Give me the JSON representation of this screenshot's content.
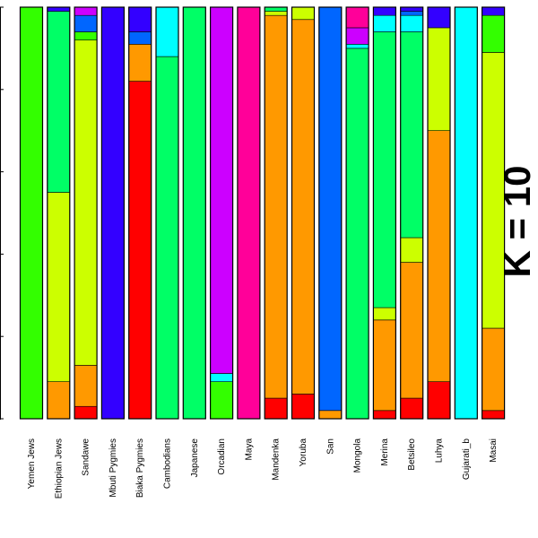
{
  "chart_data": {
    "type": "bar",
    "stacked": true,
    "orientation": "vertical",
    "ylim": [
      0,
      1
    ],
    "k_label": "K = 10",
    "categories": [
      "Yemen Jews",
      "Ethiopian Jews",
      "Sandawe",
      "Mbuti Pygmies",
      "Biaka Pygmies",
      "Cambodians",
      "Japanese",
      "Orcadian",
      "Maya",
      "Mandenka",
      "Yoruba",
      "San",
      "Mongola",
      "Merina",
      "Betsileo",
      "Luhya",
      "Gujarati_b",
      "Masai"
    ],
    "colors": {
      "red": "#ff0000",
      "orange": "#ff9900",
      "yellowgreen": "#ccff00",
      "green": "#33ff00",
      "springgreen": "#00ff66",
      "cyan": "#00ffff",
      "blue": "#0066ff",
      "indigo": "#3300ff",
      "violet": "#cc00ff",
      "magenta": "#ff0099"
    },
    "bars": [
      {
        "category": "Yemen Jews",
        "segments": [
          [
            "green",
            1.0
          ]
        ]
      },
      {
        "category": "Ethiopian Jews",
        "segments": [
          [
            "orange",
            0.09
          ],
          [
            "yellowgreen",
            0.46
          ],
          [
            "springgreen",
            0.44
          ],
          [
            "indigo",
            0.01
          ]
        ]
      },
      {
        "category": "Sandawe",
        "segments": [
          [
            "red",
            0.03
          ],
          [
            "orange",
            0.1
          ],
          [
            "yellowgreen",
            0.79
          ],
          [
            "green",
            0.02
          ],
          [
            "blue",
            0.04
          ],
          [
            "violet",
            0.02
          ]
        ]
      },
      {
        "category": "Mbuti Pygmies",
        "segments": [
          [
            "indigo",
            1.0
          ]
        ]
      },
      {
        "category": "Biaka Pygmies",
        "segments": [
          [
            "red",
            0.82
          ],
          [
            "orange",
            0.09
          ],
          [
            "blue",
            0.03
          ],
          [
            "indigo",
            0.06
          ]
        ]
      },
      {
        "category": "Cambodians",
        "segments": [
          [
            "springgreen",
            0.88
          ],
          [
            "cyan",
            0.12
          ]
        ]
      },
      {
        "category": "Japanese",
        "segments": [
          [
            "springgreen",
            1.0
          ]
        ]
      },
      {
        "category": "Orcadian",
        "segments": [
          [
            "green",
            0.09
          ],
          [
            "cyan",
            0.02
          ],
          [
            "violet",
            0.89
          ]
        ]
      },
      {
        "category": "Maya",
        "segments": [
          [
            "magenta",
            1.0
          ]
        ]
      },
      {
        "category": "Mandenka",
        "segments": [
          [
            "red",
            0.05
          ],
          [
            "orange",
            0.93
          ],
          [
            "yellowgreen",
            0.01
          ],
          [
            "springgreen",
            0.01
          ]
        ]
      },
      {
        "category": "Yoruba",
        "segments": [
          [
            "red",
            0.06
          ],
          [
            "orange",
            0.91
          ],
          [
            "yellowgreen",
            0.03
          ]
        ]
      },
      {
        "category": "San",
        "segments": [
          [
            "orange",
            0.02
          ],
          [
            "blue",
            0.98
          ]
        ]
      },
      {
        "category": "Mongola",
        "segments": [
          [
            "springgreen",
            0.9
          ],
          [
            "cyan",
            0.01
          ],
          [
            "violet",
            0.04
          ],
          [
            "magenta",
            0.05
          ]
        ]
      },
      {
        "category": "Merina",
        "segments": [
          [
            "red",
            0.02
          ],
          [
            "orange",
            0.22
          ],
          [
            "yellowgreen",
            0.03
          ],
          [
            "springgreen",
            0.67
          ],
          [
            "cyan",
            0.04
          ],
          [
            "indigo",
            0.02
          ]
        ]
      },
      {
        "category": "Betsileo",
        "segments": [
          [
            "red",
            0.05
          ],
          [
            "orange",
            0.33
          ],
          [
            "yellowgreen",
            0.06
          ],
          [
            "springgreen",
            0.5
          ],
          [
            "cyan",
            0.04
          ],
          [
            "blue",
            0.01
          ],
          [
            "indigo",
            0.01
          ]
        ]
      },
      {
        "category": "Luhya",
        "segments": [
          [
            "red",
            0.09
          ],
          [
            "orange",
            0.61
          ],
          [
            "yellowgreen",
            0.25
          ],
          [
            "indigo",
            0.05
          ]
        ]
      },
      {
        "category": "Gujarati_b",
        "segments": [
          [
            "cyan",
            1.0
          ]
        ]
      },
      {
        "category": "Masai",
        "segments": [
          [
            "red",
            0.02
          ],
          [
            "orange",
            0.2
          ],
          [
            "yellowgreen",
            0.67
          ],
          [
            "green",
            0.09
          ],
          [
            "indigo",
            0.02
          ]
        ]
      }
    ]
  }
}
